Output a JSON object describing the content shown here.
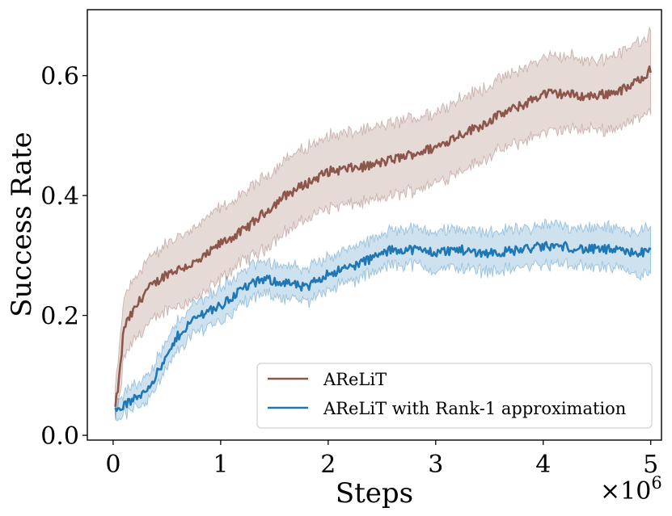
{
  "chart_data": {
    "type": "line",
    "title": "",
    "xlabel": "Steps",
    "ylabel": "Success Rate",
    "x_multiplier_label": "×10",
    "x_multiplier_exponent": "6",
    "xlim": [
      -0.24,
      5.1
    ],
    "ylim": [
      -0.008,
      0.71
    ],
    "xticks": [
      0,
      1,
      2,
      3,
      4,
      5
    ],
    "xtick_labels": [
      "0",
      "1",
      "2",
      "3",
      "4",
      "5"
    ],
    "yticks": [
      0.0,
      0.2,
      0.4,
      0.6
    ],
    "ytick_labels": [
      "0.0",
      "0.2",
      "0.4",
      "0.6"
    ],
    "grid": false,
    "legend_position": "lower-right",
    "series": [
      {
        "name": "AReLiT",
        "color": "#8c564b",
        "x": [
          0.02,
          0.06,
          0.1,
          0.2,
          0.3,
          0.5,
          0.8,
          1.0,
          1.2,
          1.4,
          1.6,
          1.8,
          2.0,
          2.2,
          2.4,
          2.6,
          2.8,
          3.0,
          3.2,
          3.4,
          3.6,
          3.8,
          4.0,
          4.2,
          4.4,
          4.6,
          4.8,
          5.0
        ],
        "mean": [
          0.045,
          0.1,
          0.18,
          0.21,
          0.24,
          0.27,
          0.29,
          0.32,
          0.34,
          0.37,
          0.4,
          0.42,
          0.44,
          0.445,
          0.45,
          0.46,
          0.47,
          0.48,
          0.5,
          0.515,
          0.535,
          0.55,
          0.57,
          0.57,
          0.565,
          0.57,
          0.58,
          0.61
        ],
        "lower": [
          0.025,
          0.06,
          0.13,
          0.16,
          0.18,
          0.21,
          0.23,
          0.26,
          0.29,
          0.31,
          0.34,
          0.36,
          0.38,
          0.385,
          0.39,
          0.4,
          0.41,
          0.42,
          0.44,
          0.455,
          0.475,
          0.49,
          0.505,
          0.51,
          0.51,
          0.51,
          0.52,
          0.545
        ],
        "upper": [
          0.075,
          0.15,
          0.23,
          0.26,
          0.29,
          0.32,
          0.35,
          0.38,
          0.4,
          0.43,
          0.46,
          0.48,
          0.5,
          0.505,
          0.51,
          0.52,
          0.53,
          0.54,
          0.56,
          0.575,
          0.595,
          0.61,
          0.63,
          0.635,
          0.625,
          0.63,
          0.645,
          0.675
        ]
      },
      {
        "name": "AReLiT with Rank-1 approximation",
        "color": "#1f77b4",
        "x": [
          0.02,
          0.05,
          0.1,
          0.2,
          0.3,
          0.4,
          0.5,
          0.6,
          0.7,
          0.8,
          0.9,
          1.0,
          1.2,
          1.4,
          1.6,
          1.8,
          1.9,
          2.0,
          2.2,
          2.4,
          2.6,
          2.8,
          3.0,
          3.2,
          3.4,
          3.6,
          3.8,
          4.0,
          4.2,
          4.4,
          4.6,
          4.8,
          5.0
        ],
        "mean": [
          0.04,
          0.045,
          0.05,
          0.06,
          0.075,
          0.1,
          0.13,
          0.165,
          0.185,
          0.2,
          0.21,
          0.215,
          0.245,
          0.26,
          0.255,
          0.245,
          0.26,
          0.27,
          0.28,
          0.295,
          0.31,
          0.31,
          0.305,
          0.31,
          0.305,
          0.305,
          0.31,
          0.315,
          0.315,
          0.31,
          0.31,
          0.305,
          0.305
        ],
        "lower": [
          0.025,
          0.03,
          0.035,
          0.045,
          0.055,
          0.08,
          0.11,
          0.14,
          0.16,
          0.175,
          0.185,
          0.19,
          0.22,
          0.235,
          0.23,
          0.22,
          0.235,
          0.245,
          0.255,
          0.27,
          0.285,
          0.285,
          0.275,
          0.28,
          0.275,
          0.275,
          0.28,
          0.285,
          0.285,
          0.28,
          0.28,
          0.27,
          0.265
        ],
        "upper": [
          0.06,
          0.065,
          0.07,
          0.08,
          0.1,
          0.125,
          0.155,
          0.19,
          0.21,
          0.225,
          0.235,
          0.245,
          0.275,
          0.29,
          0.285,
          0.275,
          0.29,
          0.3,
          0.31,
          0.325,
          0.345,
          0.345,
          0.34,
          0.345,
          0.34,
          0.34,
          0.345,
          0.35,
          0.35,
          0.345,
          0.345,
          0.34,
          0.345
        ]
      }
    ]
  }
}
